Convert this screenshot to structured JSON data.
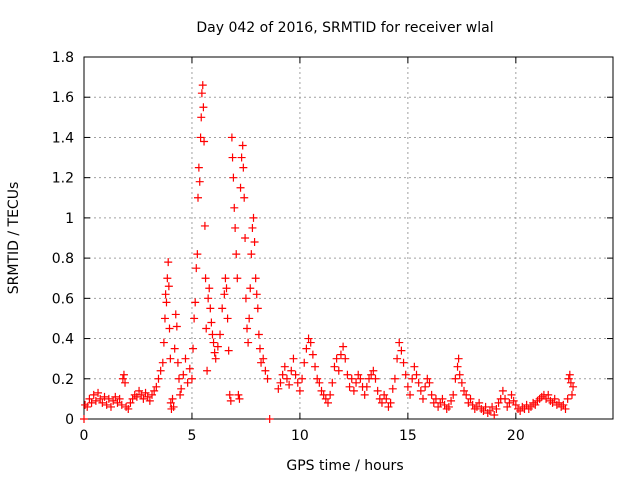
{
  "chart_data": {
    "type": "scatter",
    "title": "Day 042 of 2016, SRMTID for receiver wlal",
    "xlabel": "GPS time / hours",
    "ylabel": "SRMTID / TECUs",
    "xlim": [
      0,
      24.5
    ],
    "ylim": [
      0,
      1.8
    ],
    "xticks": [
      0,
      5,
      10,
      15,
      20
    ],
    "xtick_labels": [
      "0",
      "5",
      "10",
      "15",
      "20"
    ],
    "yticks": [
      0,
      0.2,
      0.4,
      0.6,
      0.8,
      1,
      1.2,
      1.4,
      1.6,
      1.8
    ],
    "ytick_labels": [
      "0",
      "0.2",
      "0.4",
      "0.6",
      "0.8",
      "1",
      "1.2",
      "1.4",
      "1.6",
      "1.8"
    ],
    "grid": true,
    "marker": "+",
    "color": "#ff0000",
    "series": [
      {
        "name": "SRMTID",
        "points": [
          [
            0.0,
            0.0
          ],
          [
            0.05,
            0.07
          ],
          [
            0.15,
            0.06
          ],
          [
            0.25,
            0.1
          ],
          [
            0.35,
            0.08
          ],
          [
            0.45,
            0.12
          ],
          [
            0.55,
            0.09
          ],
          [
            0.65,
            0.13
          ],
          [
            0.75,
            0.1
          ],
          [
            0.85,
            0.08
          ],
          [
            0.95,
            0.11
          ],
          [
            1.05,
            0.07
          ],
          [
            1.15,
            0.1
          ],
          [
            1.25,
            0.06
          ],
          [
            1.35,
            0.09
          ],
          [
            1.45,
            0.11
          ],
          [
            1.55,
            0.08
          ],
          [
            1.65,
            0.1
          ],
          [
            1.75,
            0.07
          ],
          [
            1.8,
            0.2
          ],
          [
            1.85,
            0.22
          ],
          [
            1.9,
            0.18
          ],
          [
            1.95,
            0.06
          ],
          [
            2.05,
            0.05
          ],
          [
            2.15,
            0.08
          ],
          [
            2.25,
            0.1
          ],
          [
            2.35,
            0.12
          ],
          [
            2.45,
            0.11
          ],
          [
            2.55,
            0.14
          ],
          [
            2.65,
            0.12
          ],
          [
            2.75,
            0.1
          ],
          [
            2.85,
            0.13
          ],
          [
            2.95,
            0.11
          ],
          [
            3.05,
            0.09
          ],
          [
            3.15,
            0.12
          ],
          [
            3.25,
            0.14
          ],
          [
            3.35,
            0.16
          ],
          [
            3.45,
            0.2
          ],
          [
            3.55,
            0.24
          ],
          [
            3.65,
            0.28
          ],
          [
            3.7,
            0.38
          ],
          [
            3.75,
            0.5
          ],
          [
            3.78,
            0.62
          ],
          [
            3.82,
            0.58
          ],
          [
            3.86,
            0.7
          ],
          [
            3.9,
            0.78
          ],
          [
            3.93,
            0.66
          ],
          [
            3.96,
            0.45
          ],
          [
            4.0,
            0.3
          ],
          [
            4.02,
            0.08
          ],
          [
            4.05,
            0.05
          ],
          [
            4.1,
            0.1
          ],
          [
            4.15,
            0.06
          ],
          [
            4.2,
            0.35
          ],
          [
            4.25,
            0.52
          ],
          [
            4.3,
            0.46
          ],
          [
            4.35,
            0.28
          ],
          [
            4.4,
            0.2
          ],
          [
            4.45,
            0.12
          ],
          [
            4.5,
            0.15
          ],
          [
            4.6,
            0.22
          ],
          [
            4.7,
            0.3
          ],
          [
            4.8,
            0.18
          ],
          [
            4.9,
            0.25
          ],
          [
            5.0,
            0.2
          ],
          [
            5.05,
            0.35
          ],
          [
            5.1,
            0.5
          ],
          [
            5.15,
            0.58
          ],
          [
            5.2,
            0.75
          ],
          [
            5.25,
            0.82
          ],
          [
            5.28,
            1.1
          ],
          [
            5.32,
            1.25
          ],
          [
            5.36,
            1.18
          ],
          [
            5.4,
            1.4
          ],
          [
            5.43,
            1.5
          ],
          [
            5.46,
            1.62
          ],
          [
            5.5,
            1.66
          ],
          [
            5.53,
            1.55
          ],
          [
            5.56,
            1.38
          ],
          [
            5.6,
            0.96
          ],
          [
            5.63,
            0.7
          ],
          [
            5.66,
            0.45
          ],
          [
            5.7,
            0.24
          ],
          [
            5.75,
            0.6
          ],
          [
            5.8,
            0.65
          ],
          [
            5.85,
            0.55
          ],
          [
            5.9,
            0.48
          ],
          [
            5.95,
            0.42
          ],
          [
            6.0,
            0.38
          ],
          [
            6.05,
            0.33
          ],
          [
            6.1,
            0.3
          ],
          [
            6.2,
            0.36
          ],
          [
            6.3,
            0.42
          ],
          [
            6.4,
            0.55
          ],
          [
            6.5,
            0.62
          ],
          [
            6.55,
            0.7
          ],
          [
            6.6,
            0.65
          ],
          [
            6.65,
            0.5
          ],
          [
            6.7,
            0.34
          ],
          [
            6.75,
            0.12
          ],
          [
            6.8,
            0.09
          ],
          [
            6.85,
            1.4
          ],
          [
            6.88,
            1.3
          ],
          [
            6.92,
            1.2
          ],
          [
            6.96,
            1.05
          ],
          [
            7.0,
            0.95
          ],
          [
            7.05,
            0.82
          ],
          [
            7.1,
            0.7
          ],
          [
            7.15,
            0.12
          ],
          [
            7.2,
            0.1
          ],
          [
            7.25,
            1.15
          ],
          [
            7.3,
            1.3
          ],
          [
            7.35,
            1.36
          ],
          [
            7.38,
            1.25
          ],
          [
            7.42,
            1.1
          ],
          [
            7.46,
            0.9
          ],
          [
            7.5,
            0.6
          ],
          [
            7.55,
            0.45
          ],
          [
            7.6,
            0.38
          ],
          [
            7.65,
            0.5
          ],
          [
            7.7,
            0.65
          ],
          [
            7.75,
            0.82
          ],
          [
            7.8,
            0.95
          ],
          [
            7.85,
            1.0
          ],
          [
            7.9,
            0.88
          ],
          [
            7.95,
            0.7
          ],
          [
            8.0,
            0.62
          ],
          [
            8.05,
            0.55
          ],
          [
            8.1,
            0.42
          ],
          [
            8.15,
            0.35
          ],
          [
            8.2,
            0.28
          ],
          [
            8.3,
            0.3
          ],
          [
            8.4,
            0.24
          ],
          [
            8.5,
            0.2
          ],
          [
            8.6,
            0.0
          ],
          [
            9.0,
            0.15
          ],
          [
            9.1,
            0.18
          ],
          [
            9.2,
            0.22
          ],
          [
            9.3,
            0.26
          ],
          [
            9.4,
            0.2
          ],
          [
            9.5,
            0.17
          ],
          [
            9.6,
            0.24
          ],
          [
            9.7,
            0.3
          ],
          [
            9.8,
            0.22
          ],
          [
            9.9,
            0.18
          ],
          [
            10.0,
            0.14
          ],
          [
            10.1,
            0.2
          ],
          [
            10.2,
            0.28
          ],
          [
            10.3,
            0.35
          ],
          [
            10.4,
            0.4
          ],
          [
            10.5,
            0.38
          ],
          [
            10.6,
            0.32
          ],
          [
            10.7,
            0.26
          ],
          [
            10.8,
            0.2
          ],
          [
            10.9,
            0.18
          ],
          [
            11.0,
            0.14
          ],
          [
            11.1,
            0.12
          ],
          [
            11.2,
            0.1
          ],
          [
            11.3,
            0.08
          ],
          [
            11.4,
            0.12
          ],
          [
            11.5,
            0.18
          ],
          [
            11.6,
            0.26
          ],
          [
            11.7,
            0.3
          ],
          [
            11.8,
            0.24
          ],
          [
            11.9,
            0.32
          ],
          [
            12.0,
            0.36
          ],
          [
            12.1,
            0.3
          ],
          [
            12.2,
            0.22
          ],
          [
            12.3,
            0.16
          ],
          [
            12.4,
            0.2
          ],
          [
            12.5,
            0.14
          ],
          [
            12.6,
            0.18
          ],
          [
            12.7,
            0.22
          ],
          [
            12.8,
            0.2
          ],
          [
            12.9,
            0.16
          ],
          [
            13.0,
            0.12
          ],
          [
            13.1,
            0.16
          ],
          [
            13.2,
            0.2
          ],
          [
            13.3,
            0.22
          ],
          [
            13.4,
            0.24
          ],
          [
            13.5,
            0.2
          ],
          [
            13.6,
            0.14
          ],
          [
            13.7,
            0.1
          ],
          [
            13.8,
            0.08
          ],
          [
            13.9,
            0.12
          ],
          [
            14.0,
            0.1
          ],
          [
            14.1,
            0.06
          ],
          [
            14.2,
            0.08
          ],
          [
            14.3,
            0.15
          ],
          [
            14.4,
            0.2
          ],
          [
            14.5,
            0.3
          ],
          [
            14.6,
            0.38
          ],
          [
            14.7,
            0.34
          ],
          [
            14.8,
            0.28
          ],
          [
            14.9,
            0.22
          ],
          [
            15.0,
            0.16
          ],
          [
            15.1,
            0.12
          ],
          [
            15.2,
            0.2
          ],
          [
            15.3,
            0.26
          ],
          [
            15.4,
            0.22
          ],
          [
            15.5,
            0.18
          ],
          [
            15.6,
            0.14
          ],
          [
            15.7,
            0.1
          ],
          [
            15.8,
            0.16
          ],
          [
            15.9,
            0.2
          ],
          [
            16.0,
            0.18
          ],
          [
            16.1,
            0.12
          ],
          [
            16.2,
            0.08
          ],
          [
            16.3,
            0.1
          ],
          [
            16.4,
            0.06
          ],
          [
            16.5,
            0.08
          ],
          [
            16.6,
            0.1
          ],
          [
            16.7,
            0.07
          ],
          [
            16.8,
            0.05
          ],
          [
            16.9,
            0.06
          ],
          [
            17.0,
            0.09
          ],
          [
            17.1,
            0.12
          ],
          [
            17.2,
            0.2
          ],
          [
            17.3,
            0.26
          ],
          [
            17.35,
            0.3
          ],
          [
            17.4,
            0.22
          ],
          [
            17.5,
            0.18
          ],
          [
            17.6,
            0.14
          ],
          [
            17.7,
            0.12
          ],
          [
            17.8,
            0.08
          ],
          [
            17.9,
            0.1
          ],
          [
            18.0,
            0.07
          ],
          [
            18.1,
            0.05
          ],
          [
            18.2,
            0.06
          ],
          [
            18.3,
            0.08
          ],
          [
            18.4,
            0.05
          ],
          [
            18.5,
            0.04
          ],
          [
            18.6,
            0.06
          ],
          [
            18.7,
            0.03
          ],
          [
            18.8,
            0.04
          ],
          [
            18.9,
            0.06
          ],
          [
            19.0,
            0.02
          ],
          [
            19.1,
            0.05
          ],
          [
            19.2,
            0.08
          ],
          [
            19.3,
            0.1
          ],
          [
            19.4,
            0.14
          ],
          [
            19.5,
            0.1
          ],
          [
            19.6,
            0.06
          ],
          [
            19.7,
            0.08
          ],
          [
            19.8,
            0.12
          ],
          [
            19.9,
            0.09
          ],
          [
            20.0,
            0.07
          ],
          [
            20.1,
            0.05
          ],
          [
            20.2,
            0.04
          ],
          [
            20.3,
            0.06
          ],
          [
            20.4,
            0.05
          ],
          [
            20.5,
            0.07
          ],
          [
            20.6,
            0.05
          ],
          [
            20.7,
            0.06
          ],
          [
            20.8,
            0.08
          ],
          [
            20.9,
            0.07
          ],
          [
            21.0,
            0.09
          ],
          [
            21.1,
            0.1
          ],
          [
            21.2,
            0.11
          ],
          [
            21.3,
            0.12
          ],
          [
            21.4,
            0.1
          ],
          [
            21.5,
            0.12
          ],
          [
            21.6,
            0.09
          ],
          [
            21.7,
            0.08
          ],
          [
            21.8,
            0.1
          ],
          [
            21.9,
            0.07
          ],
          [
            22.0,
            0.08
          ],
          [
            22.1,
            0.06
          ],
          [
            22.2,
            0.07
          ],
          [
            22.3,
            0.05
          ],
          [
            22.4,
            0.1
          ],
          [
            22.45,
            0.2
          ],
          [
            22.5,
            0.22
          ],
          [
            22.55,
            0.18
          ],
          [
            22.6,
            0.12
          ],
          [
            22.65,
            0.16
          ]
        ]
      }
    ]
  }
}
